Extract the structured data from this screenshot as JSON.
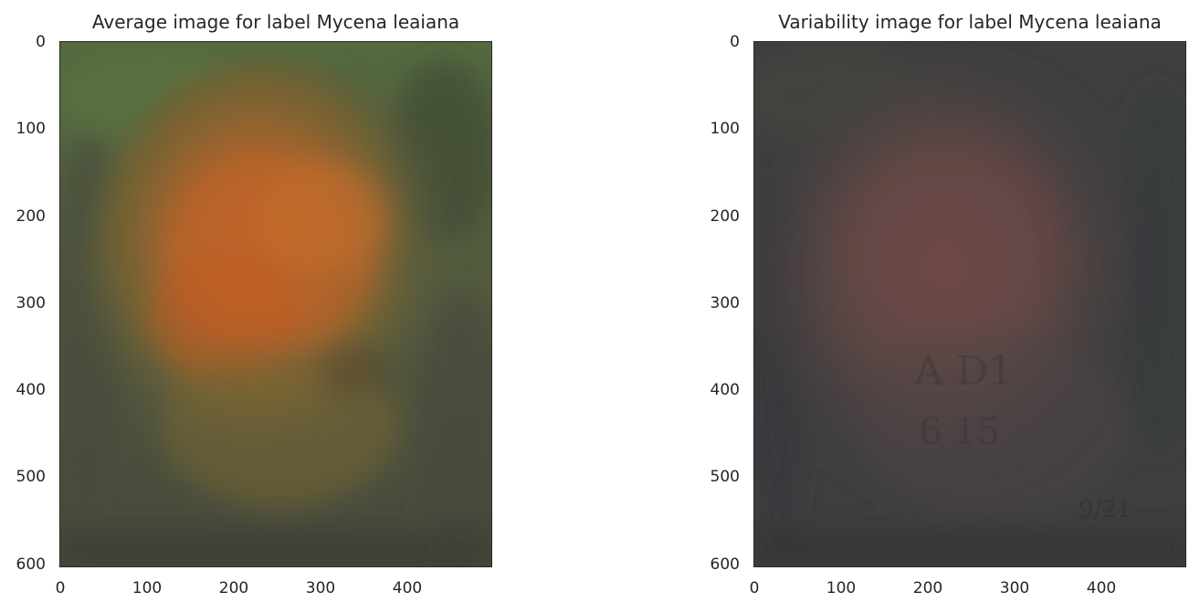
{
  "panels": [
    {
      "title": "Average image for label Mycena leaiana",
      "yticks": [
        "0",
        "100",
        "200",
        "300",
        "400",
        "500",
        "600"
      ],
      "xticks": [
        "0",
        "100",
        "200",
        "300",
        "400"
      ]
    },
    {
      "title": "Variability image for label Mycena leaiana",
      "yticks": [
        "0",
        "100",
        "200",
        "300",
        "400",
        "500",
        "600"
      ],
      "xticks": [
        "0",
        "100",
        "200",
        "300",
        "400"
      ],
      "image_text": [
        "A D1",
        "6 15",
        "9/21"
      ]
    }
  ],
  "colors": {
    "avg_background": "#4a5644",
    "avg_center": "#b4602c",
    "var_background": "#3c3c3e",
    "var_center": "#6a4848"
  }
}
